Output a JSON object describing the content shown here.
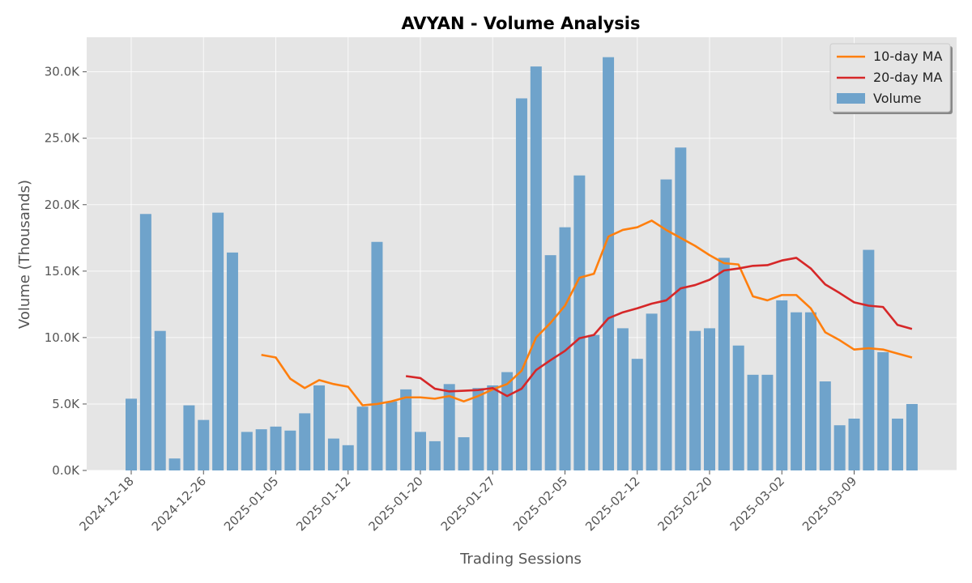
{
  "chart_data": {
    "type": "bar",
    "title": "AVYAN - Volume Analysis",
    "xlabel": "Trading Sessions",
    "ylabel": "Volume (Thousands)",
    "ylim": [
      0,
      32.6
    ],
    "y_ticks": [
      0,
      5,
      10,
      15,
      20,
      25,
      30
    ],
    "y_tick_labels": [
      "0.0K",
      "5.0K",
      "10.0K",
      "15.0K",
      "20.0K",
      "25.0K",
      "30.0K"
    ],
    "x_tick_labels": [
      {
        "index": 0,
        "label": "2024-12-18"
      },
      {
        "index": 5,
        "label": "2024-12-26"
      },
      {
        "index": 10,
        "label": "2025-01-05"
      },
      {
        "index": 15,
        "label": "2025-01-12"
      },
      {
        "index": 20,
        "label": "2025-01-20"
      },
      {
        "index": 25,
        "label": "2025-01-27"
      },
      {
        "index": 30,
        "label": "2025-02-05"
      },
      {
        "index": 35,
        "label": "2025-02-12"
      },
      {
        "index": 40,
        "label": "2025-02-20"
      },
      {
        "index": 45,
        "label": "2025-03-02"
      },
      {
        "index": 50,
        "label": "2025-03-09"
      }
    ],
    "grid": true,
    "legend_position": "top-right",
    "colors": {
      "volume": "#6fa3cb",
      "ma10": "#ff7f0e",
      "ma20": "#d62728",
      "plot_bg": "#e5e5e5",
      "grid": "#ffffff"
    },
    "series": [
      {
        "name": "Volume",
        "kind": "bar",
        "values": [
          5.4,
          19.3,
          10.5,
          0.9,
          4.9,
          3.8,
          19.4,
          16.4,
          2.9,
          3.1,
          3.3,
          3.0,
          4.3,
          6.4,
          2.4,
          1.9,
          4.8,
          17.2,
          5.2,
          6.1,
          2.9,
          2.2,
          6.5,
          2.5,
          6.2,
          6.4,
          7.4,
          28.0,
          30.4,
          16.2,
          18.3,
          22.2,
          10.2,
          31.1,
          10.7,
          8.4,
          11.8,
          21.9,
          24.3,
          10.5,
          10.7,
          16.0,
          9.4,
          7.2,
          7.2,
          12.8,
          11.9,
          11.9,
          6.7,
          3.4,
          3.9,
          16.6,
          8.9,
          3.9,
          5.0
        ]
      },
      {
        "name": "10-day MA",
        "kind": "line",
        "values": [
          null,
          null,
          null,
          null,
          null,
          null,
          null,
          null,
          null,
          8.7,
          8.5,
          6.9,
          6.2,
          6.8,
          6.5,
          6.3,
          4.9,
          5.0,
          5.2,
          5.5,
          5.5,
          5.4,
          5.6,
          5.2,
          5.6,
          6.1,
          6.5,
          7.5,
          10.0,
          11.1,
          12.4,
          14.5,
          14.8,
          17.6,
          18.1,
          18.3,
          18.8,
          18.1,
          17.5,
          16.9,
          16.2,
          15.6,
          15.5,
          13.1,
          12.8,
          13.2,
          13.2,
          12.2,
          10.4,
          9.8,
          9.1,
          9.2,
          9.1,
          8.8,
          8.5
        ]
      },
      {
        "name": "20-day MA",
        "kind": "line",
        "values": [
          null,
          null,
          null,
          null,
          null,
          null,
          null,
          null,
          null,
          null,
          null,
          null,
          null,
          null,
          null,
          null,
          null,
          null,
          null,
          7.1,
          6.95,
          6.15,
          5.95,
          6.0,
          6.05,
          6.2,
          5.6,
          6.15,
          7.55,
          8.3,
          9.0,
          9.95,
          10.2,
          11.45,
          11.9,
          12.2,
          12.55,
          12.8,
          13.7,
          13.95,
          14.35,
          15.05,
          15.2,
          15.4,
          15.45,
          15.8,
          16.0,
          15.2,
          14.0,
          13.35,
          12.65,
          12.4,
          12.3,
          10.95,
          10.65
        ]
      }
    ]
  }
}
